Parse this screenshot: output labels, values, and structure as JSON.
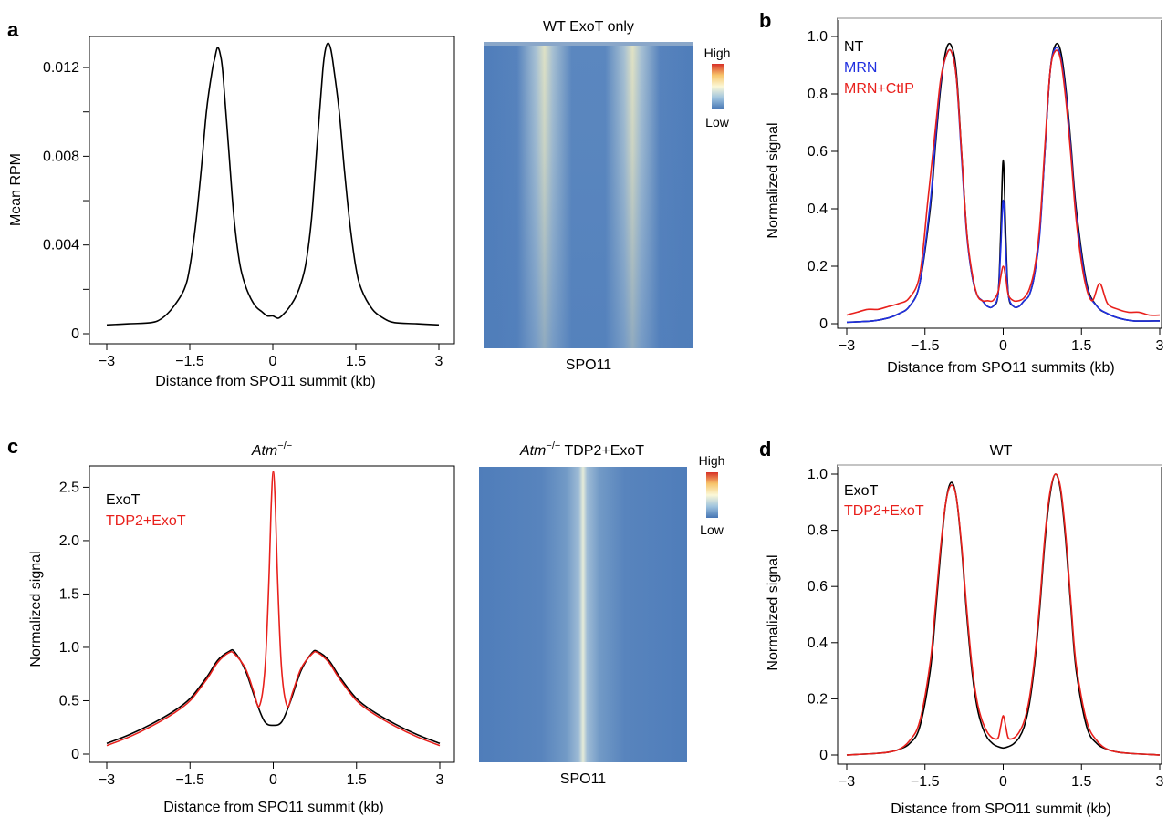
{
  "panel_letters": {
    "a": "a",
    "b": "b",
    "c": "c",
    "d": "d"
  },
  "colors": {
    "black": "#000000",
    "blue": "#1f2fe0",
    "red": "#e8201c"
  },
  "chart_data": [
    {
      "id": "a-line",
      "panel": "a",
      "type": "line",
      "title": "",
      "xlabel": "Distance from SPO11 summit (kb)",
      "ylabel": "Mean RPM",
      "xlim": [
        -3,
        3
      ],
      "ylim": [
        0,
        0.0134
      ],
      "xticks": [
        -3,
        -1.5,
        0,
        1.5,
        3
      ],
      "xtick_labels": [
        "−3",
        "−1.5",
        "0",
        "1.5",
        "3"
      ],
      "yticks": [
        0,
        0.002,
        0.004,
        0.006,
        0.008,
        0.01,
        0.012
      ],
      "ytick_labels": [
        "0",
        "",
        "0.004",
        "",
        "0.008",
        "",
        "0.012"
      ],
      "legend": [],
      "series": [
        {
          "color": "#000000",
          "x": [
            -3,
            -2.6,
            -2.2,
            -2.0,
            -1.8,
            -1.6,
            -1.5,
            -1.4,
            -1.3,
            -1.2,
            -1.1,
            -1.05,
            -1.0,
            -0.95,
            -0.9,
            -0.8,
            -0.7,
            -0.6,
            -0.5,
            -0.4,
            -0.3,
            -0.2,
            -0.1,
            0,
            0.1,
            0.2,
            0.3,
            0.4,
            0.5,
            0.6,
            0.7,
            0.8,
            0.9,
            0.95,
            1.0,
            1.05,
            1.1,
            1.2,
            1.3,
            1.4,
            1.5,
            1.6,
            1.8,
            2.0,
            2.2,
            2.6,
            3
          ],
          "y": [
            0.0004,
            0.00045,
            0.0005,
            0.0007,
            0.0012,
            0.002,
            0.003,
            0.0048,
            0.0072,
            0.01,
            0.0118,
            0.0124,
            0.0129,
            0.0126,
            0.0117,
            0.0084,
            0.0052,
            0.0032,
            0.0022,
            0.0016,
            0.0012,
            0.001,
            0.0008,
            0.0008,
            0.0007,
            0.0009,
            0.0012,
            0.0016,
            0.0022,
            0.0032,
            0.0052,
            0.0085,
            0.0118,
            0.0128,
            0.0131,
            0.0128,
            0.012,
            0.01,
            0.0072,
            0.0048,
            0.003,
            0.002,
            0.0011,
            0.0007,
            0.0005,
            0.00045,
            0.0004
          ]
        }
      ]
    },
    {
      "id": "a-heatmap",
      "panel": "a",
      "type": "heatmap",
      "title": "WT ExoT only",
      "xlabel": "SPO11",
      "colorbar": {
        "high": "High",
        "low": "Low"
      }
    },
    {
      "id": "b-line",
      "panel": "b",
      "type": "line",
      "title": "",
      "xlabel": "Distance from SPO11 summits (kb)",
      "ylabel": "Normalized signal",
      "xlim": [
        -3,
        3
      ],
      "ylim": [
        0,
        1.0
      ],
      "xticks": [
        -3,
        -1.5,
        0,
        1.5,
        3
      ],
      "xtick_labels": [
        "−3",
        "−1.5",
        "0",
        "1.5",
        "3"
      ],
      "yticks": [
        0,
        0.2,
        0.4,
        0.6,
        0.8,
        1.0
      ],
      "ytick_labels": [
        "0",
        "0.2",
        "0.4",
        "0.6",
        "0.8",
        "1.0"
      ],
      "legend": [
        "NT",
        "MRN",
        "MRN+CtIP"
      ],
      "series": [
        {
          "name": "NT",
          "color": "#000000",
          "x": [
            -3,
            -2.5,
            -2.2,
            -2.0,
            -1.8,
            -1.6,
            -1.4,
            -1.3,
            -1.2,
            -1.1,
            -1.0,
            -0.9,
            -0.8,
            -0.7,
            -0.6,
            -0.5,
            -0.4,
            -0.3,
            -0.2,
            -0.1,
            -0.05,
            0,
            0.05,
            0.1,
            0.2,
            0.3,
            0.4,
            0.5,
            0.6,
            0.7,
            0.8,
            0.9,
            1.0,
            1.1,
            1.2,
            1.3,
            1.4,
            1.6,
            1.8,
            2.0,
            2.2,
            2.5,
            3
          ],
          "y": [
            0.005,
            0.01,
            0.02,
            0.035,
            0.06,
            0.14,
            0.4,
            0.62,
            0.82,
            0.95,
            0.97,
            0.88,
            0.6,
            0.32,
            0.17,
            0.1,
            0.08,
            0.06,
            0.06,
            0.1,
            0.3,
            0.57,
            0.3,
            0.1,
            0.06,
            0.06,
            0.08,
            0.1,
            0.17,
            0.32,
            0.6,
            0.88,
            0.97,
            0.95,
            0.82,
            0.62,
            0.4,
            0.14,
            0.06,
            0.035,
            0.02,
            0.01,
            0.01
          ]
        },
        {
          "name": "MRN",
          "color": "#1f2fe0",
          "x": [
            -3,
            -2.5,
            -2.2,
            -2.0,
            -1.8,
            -1.6,
            -1.4,
            -1.3,
            -1.2,
            -1.1,
            -1.0,
            -0.9,
            -0.8,
            -0.7,
            -0.6,
            -0.5,
            -0.4,
            -0.3,
            -0.2,
            -0.1,
            -0.05,
            0,
            0.05,
            0.1,
            0.2,
            0.3,
            0.4,
            0.5,
            0.6,
            0.7,
            0.8,
            0.9,
            1.0,
            1.1,
            1.2,
            1.3,
            1.4,
            1.6,
            1.8,
            2.0,
            2.2,
            2.5,
            3
          ],
          "y": [
            0.005,
            0.01,
            0.02,
            0.035,
            0.06,
            0.14,
            0.42,
            0.64,
            0.84,
            0.93,
            0.95,
            0.86,
            0.58,
            0.31,
            0.17,
            0.1,
            0.08,
            0.06,
            0.06,
            0.1,
            0.25,
            0.43,
            0.25,
            0.1,
            0.06,
            0.06,
            0.08,
            0.1,
            0.17,
            0.31,
            0.6,
            0.88,
            0.96,
            0.93,
            0.8,
            0.6,
            0.38,
            0.13,
            0.06,
            0.035,
            0.02,
            0.01,
            0.01
          ]
        },
        {
          "name": "MRN+CtIP",
          "color": "#e8201c",
          "x": [
            -3,
            -2.8,
            -2.6,
            -2.4,
            -2.2,
            -2.0,
            -1.8,
            -1.6,
            -1.45,
            -1.3,
            -1.2,
            -1.1,
            -1.0,
            -0.9,
            -0.8,
            -0.7,
            -0.6,
            -0.5,
            -0.4,
            -0.3,
            -0.2,
            -0.1,
            -0.05,
            0,
            0.05,
            0.1,
            0.2,
            0.3,
            0.4,
            0.5,
            0.6,
            0.7,
            0.8,
            0.9,
            1.0,
            1.1,
            1.2,
            1.3,
            1.4,
            1.55,
            1.7,
            1.85,
            2.0,
            2.2,
            2.4,
            2.6,
            2.8,
            3
          ],
          "y": [
            0.03,
            0.04,
            0.05,
            0.05,
            0.06,
            0.07,
            0.09,
            0.17,
            0.42,
            0.68,
            0.85,
            0.93,
            0.95,
            0.86,
            0.6,
            0.32,
            0.18,
            0.1,
            0.08,
            0.08,
            0.08,
            0.11,
            0.16,
            0.2,
            0.16,
            0.1,
            0.08,
            0.08,
            0.09,
            0.12,
            0.19,
            0.34,
            0.62,
            0.88,
            0.95,
            0.92,
            0.78,
            0.58,
            0.36,
            0.16,
            0.08,
            0.14,
            0.07,
            0.05,
            0.04,
            0.04,
            0.03,
            0.03
          ]
        }
      ]
    },
    {
      "id": "c-line",
      "panel": "c",
      "type": "line",
      "title": "Atm−/−",
      "xlabel": "Distance from SPO11 summit (kb)",
      "ylabel": "Normalized signal",
      "xlim": [
        -3,
        3
      ],
      "ylim": [
        0,
        2.7
      ],
      "xticks": [
        -3,
        -1.5,
        0,
        1.5,
        3
      ],
      "xtick_labels": [
        "−3",
        "−1.5",
        "0",
        "1.5",
        "3"
      ],
      "yticks": [
        0,
        0.5,
        1.0,
        1.5,
        2.0,
        2.5
      ],
      "ytick_labels": [
        "0",
        "0.5",
        "1.0",
        "1.5",
        "2.0",
        "2.5"
      ],
      "legend": [
        "ExoT",
        "TDP2+ExoT"
      ],
      "series": [
        {
          "name": "ExoT",
          "color": "#000000",
          "x": [
            -3,
            -2.6,
            -2.2,
            -1.8,
            -1.5,
            -1.2,
            -1.0,
            -0.8,
            -0.7,
            -0.5,
            -0.3,
            -0.15,
            0,
            0.15,
            0.3,
            0.5,
            0.7,
            0.8,
            1.0,
            1.2,
            1.5,
            1.8,
            2.2,
            2.6,
            3
          ],
          "y": [
            0.1,
            0.18,
            0.28,
            0.4,
            0.52,
            0.72,
            0.88,
            0.96,
            0.96,
            0.78,
            0.48,
            0.3,
            0.27,
            0.3,
            0.48,
            0.78,
            0.95,
            0.96,
            0.88,
            0.72,
            0.52,
            0.4,
            0.28,
            0.18,
            0.1
          ]
        },
        {
          "name": "TDP2+ExoT",
          "color": "#e8201c",
          "x": [
            -3,
            -2.6,
            -2.2,
            -1.8,
            -1.5,
            -1.2,
            -1.0,
            -0.8,
            -0.7,
            -0.5,
            -0.35,
            -0.25,
            -0.15,
            -0.08,
            -0.04,
            0,
            0.04,
            0.08,
            0.15,
            0.25,
            0.35,
            0.5,
            0.7,
            0.8,
            1.0,
            1.2,
            1.5,
            1.8,
            2.2,
            2.6,
            3
          ],
          "y": [
            0.08,
            0.16,
            0.26,
            0.38,
            0.5,
            0.7,
            0.86,
            0.95,
            0.94,
            0.8,
            0.58,
            0.45,
            0.8,
            1.6,
            2.3,
            2.65,
            2.3,
            1.6,
            0.8,
            0.45,
            0.58,
            0.8,
            0.94,
            0.95,
            0.86,
            0.7,
            0.5,
            0.38,
            0.26,
            0.16,
            0.08
          ]
        }
      ]
    },
    {
      "id": "c-heatmap",
      "panel": "c",
      "type": "heatmap",
      "title_italic": "Atm",
      "title_sup": "−/−",
      "title_rest": " TDP2+ExoT",
      "xlabel": "SPO11",
      "colorbar": {
        "high": "High",
        "low": "Low"
      }
    },
    {
      "id": "d-line",
      "panel": "d",
      "type": "line",
      "title": "WT",
      "xlabel": "Distance from SPO11 summit (kb)",
      "ylabel": "Normalized signal",
      "xlim": [
        -3,
        3
      ],
      "ylim": [
        0,
        1.0
      ],
      "xticks": [
        -3,
        -1.5,
        0,
        1.5,
        3
      ],
      "xtick_labels": [
        "−3",
        "−1.5",
        "0",
        "1.5",
        "3"
      ],
      "yticks": [
        0,
        0.2,
        0.4,
        0.6,
        0.8,
        1.0
      ],
      "ytick_labels": [
        "0",
        "0.2",
        "0.4",
        "0.6",
        "0.8",
        "1.0"
      ],
      "legend": [
        "ExoT",
        "TDP2+ExoT"
      ],
      "series": [
        {
          "name": "ExoT",
          "color": "#000000",
          "x": [
            -3,
            -2.5,
            -2.2,
            -2.0,
            -1.8,
            -1.6,
            -1.4,
            -1.3,
            -1.2,
            -1.1,
            -1.0,
            -0.9,
            -0.8,
            -0.7,
            -0.6,
            -0.5,
            -0.4,
            -0.3,
            -0.2,
            -0.1,
            0,
            0.1,
            0.2,
            0.3,
            0.4,
            0.5,
            0.6,
            0.7,
            0.8,
            0.9,
            1.0,
            1.1,
            1.2,
            1.3,
            1.4,
            1.6,
            1.8,
            2.0,
            2.2,
            2.5,
            3
          ],
          "y": [
            0.0,
            0.005,
            0.01,
            0.02,
            0.04,
            0.1,
            0.3,
            0.5,
            0.72,
            0.9,
            0.97,
            0.92,
            0.74,
            0.5,
            0.3,
            0.17,
            0.1,
            0.06,
            0.04,
            0.03,
            0.025,
            0.03,
            0.04,
            0.06,
            0.1,
            0.18,
            0.32,
            0.52,
            0.76,
            0.93,
            1.0,
            0.94,
            0.76,
            0.52,
            0.3,
            0.1,
            0.04,
            0.02,
            0.01,
            0.005,
            0.0
          ]
        },
        {
          "name": "TDP2+ExoT",
          "color": "#e8201c",
          "x": [
            -3,
            -2.5,
            -2.2,
            -2.0,
            -1.8,
            -1.6,
            -1.4,
            -1.3,
            -1.2,
            -1.1,
            -1.0,
            -0.9,
            -0.8,
            -0.7,
            -0.6,
            -0.5,
            -0.4,
            -0.3,
            -0.2,
            -0.1,
            -0.05,
            0,
            0.05,
            0.1,
            0.2,
            0.3,
            0.4,
            0.5,
            0.6,
            0.7,
            0.8,
            0.9,
            1.0,
            1.1,
            1.2,
            1.3,
            1.4,
            1.6,
            1.8,
            2.0,
            2.2,
            2.5,
            3
          ],
          "y": [
            0.0,
            0.005,
            0.01,
            0.02,
            0.05,
            0.12,
            0.33,
            0.53,
            0.74,
            0.9,
            0.96,
            0.92,
            0.75,
            0.52,
            0.32,
            0.19,
            0.12,
            0.08,
            0.06,
            0.06,
            0.1,
            0.14,
            0.1,
            0.06,
            0.06,
            0.08,
            0.12,
            0.2,
            0.34,
            0.54,
            0.78,
            0.94,
            1.0,
            0.95,
            0.78,
            0.54,
            0.32,
            0.12,
            0.05,
            0.02,
            0.01,
            0.005,
            0.0
          ]
        }
      ]
    }
  ]
}
